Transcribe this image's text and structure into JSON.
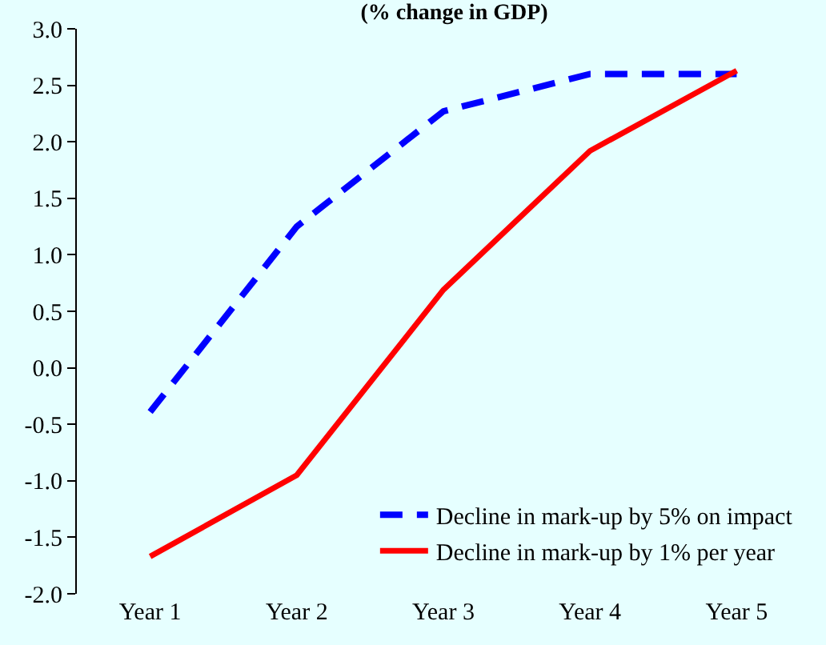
{
  "chart_data": {
    "type": "line",
    "title": "(% change in GDP)",
    "categories": [
      "Year 1",
      "Year 2",
      "Year 3",
      "Year 4",
      "Year 5"
    ],
    "series": [
      {
        "name": "Decline in mark-up by 5% on impact",
        "color": "#0000ff",
        "line_style": "dashed",
        "values": [
          -0.39,
          1.25,
          2.27,
          2.6,
          2.6
        ]
      },
      {
        "name": "Decline in mark-up by 1% per year",
        "color": "#ff0000",
        "line_style": "solid",
        "values": [
          -1.67,
          -0.95,
          0.69,
          1.92,
          2.63
        ]
      }
    ],
    "ylim": [
      -2.0,
      3.0
    ],
    "yticks": [
      {
        "value": -2,
        "label": "-2.0"
      },
      {
        "value": -1.5,
        "label": "-1.5"
      },
      {
        "value": -1,
        "label": "-1.0"
      },
      {
        "value": -0.5,
        "label": "-0.5"
      },
      {
        "value": 0,
        "label": "0.0"
      },
      {
        "value": 0.5,
        "label": "0.5"
      },
      {
        "value": 1,
        "label": "1.0"
      },
      {
        "value": 1.5,
        "label": "1.5"
      },
      {
        "value": 2,
        "label": "2.0"
      },
      {
        "value": 2.5,
        "label": "2.5"
      },
      {
        "value": 3,
        "label": "3.0"
      }
    ],
    "grid": false,
    "legend": "bottom right",
    "marker": "none"
  }
}
